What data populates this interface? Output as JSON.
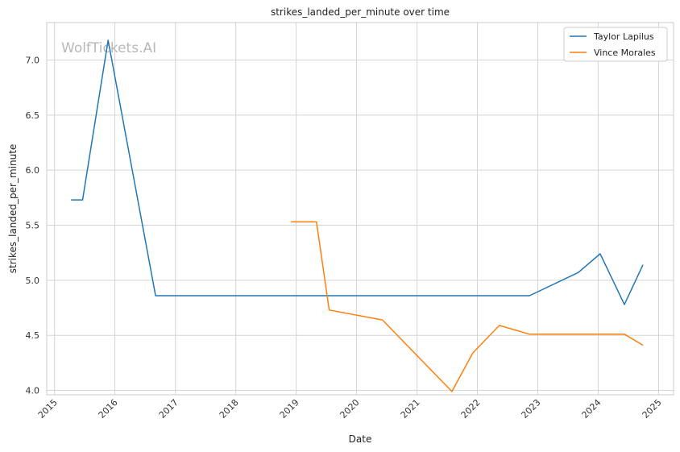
{
  "chart_data": {
    "type": "line",
    "title": "strikes_landed_per_minute over time",
    "xlabel": "Date",
    "ylabel": "strikes_landed_per_minute",
    "watermark": "WolfTickets.AI",
    "x_ticks": [
      "2015",
      "2016",
      "2017",
      "2018",
      "2019",
      "2020",
      "2021",
      "2022",
      "2023",
      "2024",
      "2025"
    ],
    "y_ticks": [
      "4.0",
      "4.5",
      "5.0",
      "5.5",
      "6.0",
      "6.5",
      "7.0"
    ],
    "xlim": [
      "2014-11-15",
      "2025-04-01"
    ],
    "ylim": [
      3.96,
      7.34
    ],
    "grid": true,
    "legend_position": "top-right",
    "colors": {
      "Taylor Lapilus": "#1f77b4",
      "Vince Morales": "#ff7f0e"
    },
    "series": [
      {
        "name": "Taylor Lapilus",
        "points": [
          [
            "2015-04-11",
            5.73
          ],
          [
            "2015-06-20",
            5.73
          ],
          [
            "2015-11-21",
            7.18
          ],
          [
            "2016-09-03",
            4.86
          ],
          [
            "2022-11-12",
            4.86
          ],
          [
            "2023-09-02",
            5.07
          ],
          [
            "2024-01-13",
            5.24
          ],
          [
            "2024-06-08",
            4.78
          ],
          [
            "2024-09-28",
            5.14
          ]
        ]
      },
      {
        "name": "Vince Morales",
        "points": [
          [
            "2018-11-30",
            5.53
          ],
          [
            "2019-05-04",
            5.53
          ],
          [
            "2019-07-20",
            4.73
          ],
          [
            "2020-06-06",
            4.64
          ],
          [
            "2021-07-31",
            3.99
          ],
          [
            "2021-12-04",
            4.34
          ],
          [
            "2022-05-14",
            4.59
          ],
          [
            "2022-11-12",
            4.51
          ],
          [
            "2024-06-08",
            4.51
          ],
          [
            "2024-09-28",
            4.41
          ]
        ]
      }
    ]
  }
}
